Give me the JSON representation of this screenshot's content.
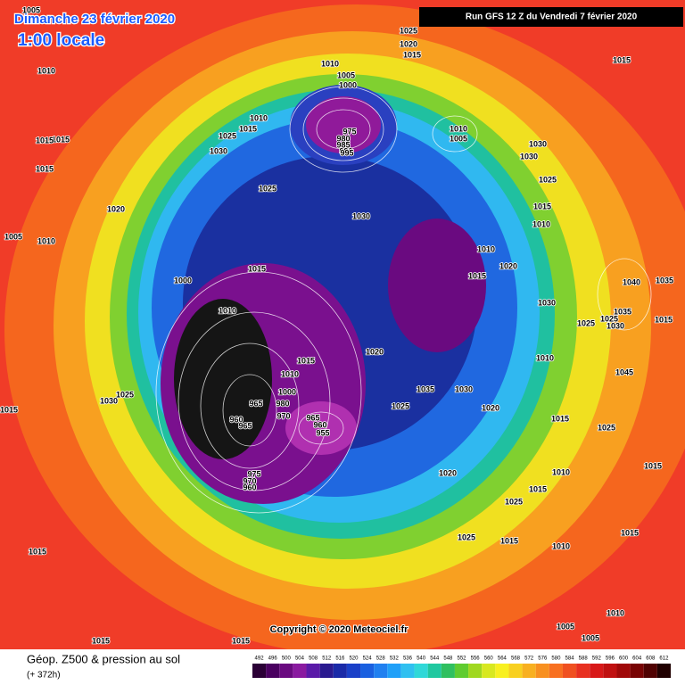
{
  "header": {
    "date": "Dimanche 23 février 2020",
    "time": "1:00 locale",
    "run": "Run GFS 12 Z du Vendredi 7 février 2020"
  },
  "copyright": "Copyright © 2020 Meteociel.fr",
  "footer": {
    "title": "Géop. Z500 & pression au sol",
    "lead": "(+ 372h)"
  },
  "legend": {
    "values": [
      492,
      496,
      500,
      504,
      508,
      512,
      516,
      520,
      524,
      528,
      532,
      536,
      540,
      544,
      548,
      552,
      556,
      560,
      564,
      568,
      572,
      576,
      580,
      584,
      588,
      592,
      596,
      600,
      604,
      608,
      612
    ],
    "colors": [
      "#2b0036",
      "#4a0060",
      "#6a0a80",
      "#8a1aa0",
      "#5a1aa8",
      "#2a1a90",
      "#1a2aa8",
      "#1a40c8",
      "#1a60e0",
      "#2080f0",
      "#20a0f8",
      "#30c0f0",
      "#30d8d8",
      "#20c8a0",
      "#30c060",
      "#60cc30",
      "#a0d820",
      "#d8e820",
      "#f8f020",
      "#f8d020",
      "#f8b020",
      "#f89020",
      "#f87020",
      "#f05020",
      "#e83020",
      "#d81818",
      "#c01010",
      "#a00808",
      "#780404",
      "#500202",
      "#200000"
    ]
  },
  "isobars": {
    "labels": [
      1005,
      1010,
      1015,
      1015,
      1015,
      1025,
      1020,
      1015,
      1010,
      1005,
      1000,
      975,
      980,
      985,
      990,
      995,
      1010,
      1015,
      1025,
      1030,
      1025,
      1020,
      1005,
      1010,
      1000,
      1015,
      1010,
      1030,
      1010,
      1005,
      1030,
      1030,
      1025,
      1015,
      1010,
      1010,
      1020,
      1015,
      1030,
      1015,
      1040,
      1035,
      1035,
      1025,
      1030,
      1025,
      1015,
      1010,
      1045,
      1020,
      1015,
      1010,
      1000,
      980,
      970,
      965,
      960,
      965,
      965,
      960,
      955,
      1035,
      1025,
      1030,
      1020,
      1015,
      1025,
      1020,
      1010,
      1015,
      1025,
      1025,
      1015,
      1010,
      1015,
      1015,
      1015,
      1025,
      1030,
      975,
      970,
      960,
      1015,
      1015,
      1005,
      1005,
      1010,
      1015
    ]
  }
}
